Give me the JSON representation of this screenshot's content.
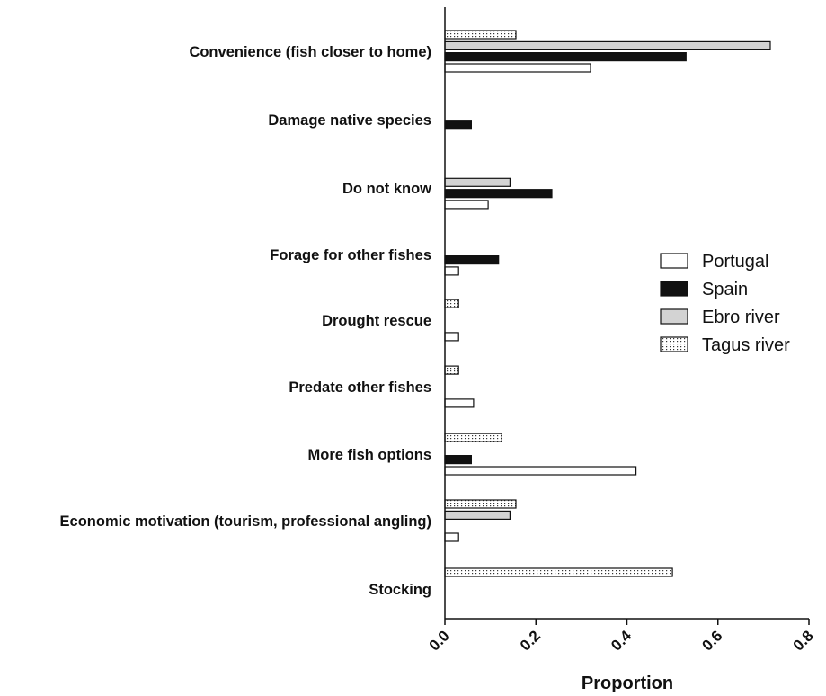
{
  "chart_data": {
    "type": "bar",
    "orientation": "horizontal",
    "xlabel": "Proportion",
    "xlim": [
      0,
      0.8
    ],
    "xticks": [
      "0.0",
      "0.2",
      "0.4",
      "0.6",
      "0.8"
    ],
    "legend_position": "right",
    "categories": [
      "Convenience (fish closer to home)",
      "Damage native species",
      "Do not know",
      "Forage for other fishes",
      "Drought rescue",
      "Predate other fishes",
      "More fish options",
      "Economic motivation (tourism, professional angling)",
      "Stocking"
    ],
    "series": [
      {
        "name": "Portugal",
        "pattern": "white",
        "values": [
          0.32,
          0,
          0.095,
          0.03,
          0.03,
          0.063,
          0.42,
          0.03,
          0
        ]
      },
      {
        "name": "Spain",
        "pattern": "black",
        "values": [
          0.53,
          0.058,
          0.235,
          0.118,
          0,
          0,
          0.058,
          0,
          0
        ]
      },
      {
        "name": "Ebro river",
        "pattern": "grey",
        "values": [
          0.715,
          0,
          0.143,
          0,
          0,
          0,
          0,
          0.143,
          0
        ]
      },
      {
        "name": "Tagus river",
        "pattern": "dotted",
        "values": [
          0.156,
          0,
          0,
          0,
          0.03,
          0.03,
          0.125,
          0.156,
          0.5
        ]
      }
    ]
  }
}
